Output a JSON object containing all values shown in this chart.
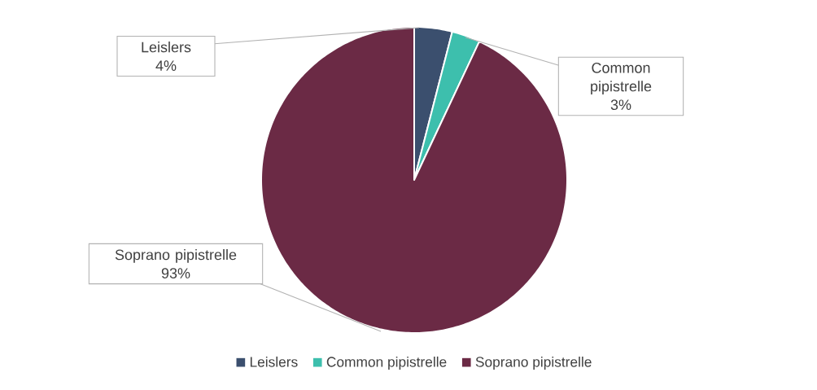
{
  "chart_data": {
    "type": "pie",
    "categories": [
      "Leislers",
      "Common pipistrelle",
      "Soprano pipistrelle"
    ],
    "values": [
      4,
      3,
      93
    ],
    "value_labels": [
      "4%",
      "3%",
      "93%"
    ],
    "colors": [
      "#3b4f6e",
      "#3dbfad",
      "#6b2a45"
    ],
    "legend": "bottom"
  }
}
